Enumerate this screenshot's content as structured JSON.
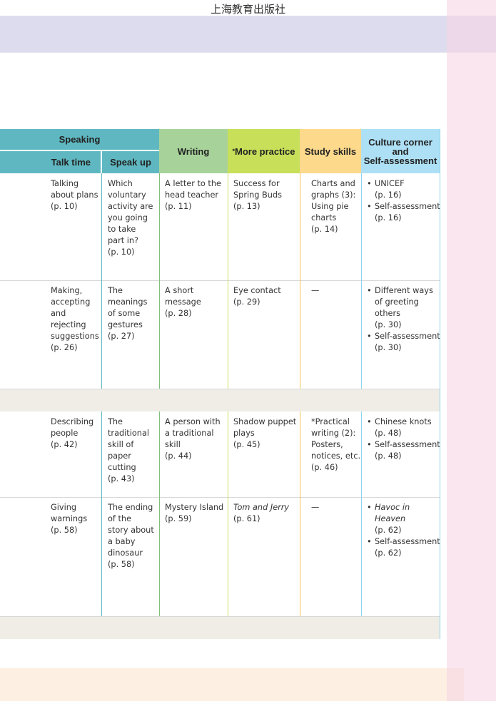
{
  "publisher": "上海教育出版社",
  "colors": {
    "speaking": "#5fb8c1",
    "writing": "#a7d39a",
    "more_practice": "#c8df5a",
    "study_skills": "#fdd98c",
    "culture": "#aee0f5",
    "gray_row": "#f0ede7",
    "band_top": "#dddcee"
  },
  "header": {
    "speaking": "Speaking",
    "talk_time": "Talk time",
    "speak_up": "Speak up",
    "writing": "Writing",
    "more_practice_star": "*",
    "more_practice": "More practice",
    "study_skills": "Study skills",
    "culture": [
      "Culture corner",
      "and",
      "Self-assessment"
    ]
  },
  "rows": [
    {
      "talk_time": {
        "lines": [
          "Talking",
          "about plans",
          "(p. 10)"
        ]
      },
      "speak_up": {
        "lines": [
          "Which",
          "voluntary",
          "activity are",
          "you going",
          "to take",
          "part in?",
          "(p. 10)"
        ]
      },
      "writing": {
        "lines": [
          "A letter to the",
          "head teacher",
          "(p. 11)"
        ]
      },
      "more_practice": {
        "lines": [
          "Success for",
          "Spring Buds",
          "(p. 13)"
        ]
      },
      "study_skills": {
        "lines": [
          "Charts and",
          "graphs (3):",
          "Using pie",
          "charts",
          "(p. 14)"
        ]
      },
      "culture": [
        {
          "lines": [
            "UNICEF",
            "(p. 16)"
          ]
        },
        {
          "lines": [
            "Self-assessment",
            "(p. 16)"
          ]
        }
      ]
    },
    {
      "talk_time": {
        "lines": [
          "Making,",
          "accepting",
          "and",
          "rejecting",
          "suggestions",
          "(p. 26)"
        ]
      },
      "speak_up": {
        "lines": [
          "The",
          "meanings",
          "of some",
          "gestures",
          "(p. 27)"
        ]
      },
      "writing": {
        "lines": [
          "A short",
          "message",
          "(p. 28)"
        ]
      },
      "more_practice": {
        "lines": [
          "Eye contact",
          "(p. 29)"
        ]
      },
      "study_skills": {
        "lines": [
          "—"
        ]
      },
      "culture": [
        {
          "lines": [
            "Different ways",
            "of greeting",
            "others",
            "(p. 30)"
          ]
        },
        {
          "lines": [
            "Self-assessment",
            "(p. 30)"
          ]
        }
      ]
    },
    {
      "talk_time": {
        "lines": [
          "Describing",
          "people",
          "(p. 42)"
        ]
      },
      "speak_up": {
        "lines": [
          "The",
          "traditional",
          "skill of",
          "paper",
          "cutting",
          "(p. 43)"
        ]
      },
      "writing": {
        "lines": [
          "A person with",
          "a traditional",
          "skill",
          "(p. 44)"
        ]
      },
      "more_practice": {
        "lines": [
          "Shadow puppet",
          "plays",
          "(p. 45)"
        ]
      },
      "study_skills": {
        "lines": [
          "*Practical",
          "writing (2):",
          "Posters,",
          "notices, etc.",
          "(p. 46)"
        ]
      },
      "culture": [
        {
          "lines": [
            "Chinese knots",
            "(p. 48)"
          ]
        },
        {
          "lines": [
            "Self-assessment",
            "(p. 48)"
          ]
        }
      ]
    },
    {
      "talk_time": {
        "lines": [
          "Giving",
          "warnings",
          "(p. 58)"
        ]
      },
      "speak_up": {
        "lines": [
          "The ending",
          "of the",
          "story about",
          "a baby",
          "dinosaur",
          "(p. 58)"
        ]
      },
      "writing": {
        "lines": [
          "Mystery Island",
          "(p. 59)"
        ]
      },
      "more_practice": {
        "lines": [
          "Tom and Jerry",
          "(p. 61)"
        ],
        "italic_first": true
      },
      "study_skills": {
        "lines": [
          "—"
        ]
      },
      "culture": [
        {
          "lines": [
            "Havoc in",
            "Heaven",
            "(p. 62)"
          ],
          "italic_lines": 2
        },
        {
          "lines": [
            "Self-assessment",
            "(p. 62)"
          ]
        }
      ]
    }
  ]
}
